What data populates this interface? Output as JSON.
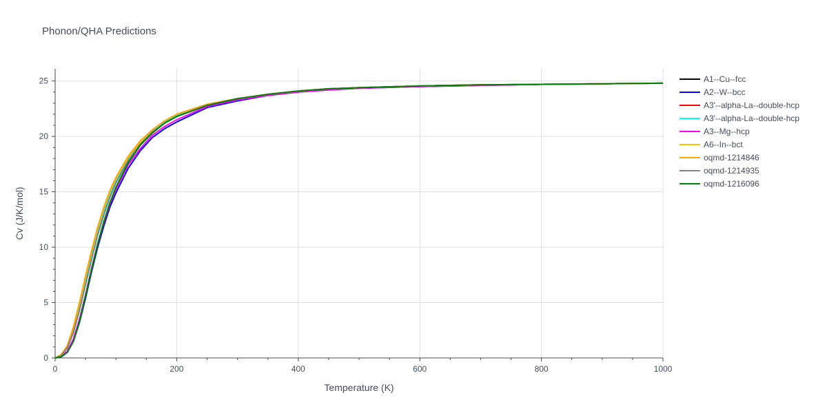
{
  "chart_data": {
    "type": "line",
    "title": "Phonon/QHA Predictions",
    "xlabel": "Temperature (K)",
    "ylabel": "Cv (J/K/mol)",
    "xlim": [
      0,
      1000
    ],
    "ylim": [
      0,
      26.1
    ],
    "xticks": [
      0,
      200,
      400,
      600,
      800,
      1000
    ],
    "yticks": [
      0,
      5,
      10,
      15,
      20,
      25
    ],
    "grid": true,
    "legend_position": "right",
    "series": [
      {
        "name": "A1--Cu--fcc",
        "color": "#000000",
        "x": [
          0,
          10,
          20,
          30,
          40,
          50,
          60,
          70,
          80,
          90,
          100,
          120,
          140,
          160,
          180,
          200,
          250,
          300,
          350,
          400,
          450,
          500,
          600,
          700,
          800,
          900,
          1000
        ],
        "y": [
          0,
          0.2,
          0.9,
          2.3,
          4.4,
          6.7,
          9.0,
          11.2,
          13.0,
          14.6,
          15.9,
          17.9,
          19.3,
          20.4,
          21.2,
          21.8,
          22.8,
          23.4,
          23.8,
          24.1,
          24.3,
          24.4,
          24.55,
          24.65,
          24.7,
          24.75,
          24.8
        ]
      },
      {
        "name": "A2--W--bcc",
        "color": "#0000ff",
        "x": [
          0,
          10,
          20,
          30,
          40,
          50,
          60,
          70,
          80,
          90,
          100,
          120,
          140,
          160,
          180,
          200,
          250,
          300,
          350,
          400,
          450,
          500,
          600,
          700,
          800,
          900,
          1000
        ],
        "y": [
          0,
          0.1,
          0.5,
          1.5,
          3.2,
          5.4,
          7.8,
          10.0,
          11.9,
          13.6,
          14.9,
          17.1,
          18.7,
          19.9,
          20.7,
          21.3,
          22.6,
          23.2,
          23.7,
          24.0,
          24.2,
          24.35,
          24.5,
          24.6,
          24.7,
          24.75,
          24.8
        ]
      },
      {
        "name": "A3'--alpha-La--double-hcp",
        "color": "#ff0000",
        "x": [
          0,
          10,
          20,
          30,
          40,
          50,
          60,
          70,
          80,
          90,
          100,
          120,
          140,
          160,
          180,
          200,
          250,
          300,
          350,
          400,
          450,
          500,
          600,
          700,
          800,
          900,
          1000
        ],
        "y": [
          0,
          0.2,
          0.9,
          2.4,
          4.6,
          6.9,
          9.2,
          11.4,
          13.2,
          14.8,
          16.0,
          18.0,
          19.4,
          20.5,
          21.3,
          21.9,
          22.9,
          23.4,
          23.8,
          24.1,
          24.3,
          24.4,
          24.55,
          24.65,
          24.7,
          24.75,
          24.8
        ]
      },
      {
        "name": "A3'--alpha-La--double-hcp",
        "color": "#00ffff",
        "x": [
          0,
          10,
          20,
          30,
          40,
          50,
          60,
          70,
          80,
          90,
          100,
          120,
          140,
          160,
          180,
          200,
          250,
          300,
          350,
          400,
          450,
          500,
          600,
          700,
          800,
          900,
          1000
        ],
        "y": [
          0,
          0.2,
          0.9,
          2.4,
          4.5,
          6.8,
          9.1,
          11.3,
          13.1,
          14.7,
          16.0,
          18.0,
          19.4,
          20.5,
          21.3,
          21.9,
          22.9,
          23.4,
          23.8,
          24.1,
          24.3,
          24.4,
          24.55,
          24.65,
          24.7,
          24.75,
          24.8
        ]
      },
      {
        "name": "A3--Mg--hcp",
        "color": "#ff00ff",
        "x": [
          0,
          10,
          20,
          30,
          40,
          50,
          60,
          70,
          80,
          90,
          100,
          120,
          140,
          160,
          180,
          200,
          250,
          300,
          350,
          400,
          450,
          500,
          600,
          700,
          800,
          900,
          1000
        ],
        "y": [
          0,
          0.1,
          0.6,
          1.7,
          3.5,
          5.7,
          8.1,
          10.3,
          12.2,
          13.9,
          15.2,
          17.4,
          18.9,
          20.1,
          20.9,
          21.5,
          22.7,
          23.3,
          23.7,
          24.0,
          24.2,
          24.35,
          24.5,
          24.6,
          24.7,
          24.75,
          24.8
        ]
      },
      {
        "name": "A6--In--bct",
        "color": "#ffbf00",
        "x": [
          0,
          10,
          20,
          30,
          40,
          50,
          60,
          70,
          80,
          90,
          100,
          120,
          140,
          160,
          180,
          200,
          250,
          300,
          350,
          400,
          450,
          500,
          600,
          700,
          800,
          900,
          1000
        ],
        "y": [
          0,
          0.3,
          1.1,
          2.7,
          4.9,
          7.3,
          9.6,
          11.7,
          13.5,
          15.0,
          16.2,
          18.1,
          19.5,
          20.6,
          21.4,
          22.0,
          22.9,
          23.4,
          23.8,
          24.1,
          24.3,
          24.4,
          24.55,
          24.65,
          24.7,
          24.75,
          24.8
        ]
      },
      {
        "name": "oqmd-1214846",
        "color": "#ffa500",
        "x": [
          0,
          10,
          20,
          30,
          40,
          50,
          60,
          70,
          80,
          90,
          100,
          120,
          140,
          160,
          180,
          200,
          250,
          300,
          350,
          400,
          450,
          500,
          600,
          700,
          800,
          900,
          1000
        ],
        "y": [
          0,
          0.3,
          1.1,
          2.8,
          5.0,
          7.4,
          9.7,
          11.8,
          13.6,
          15.1,
          16.3,
          18.2,
          19.6,
          20.6,
          21.4,
          22.0,
          22.9,
          23.4,
          23.8,
          24.1,
          24.3,
          24.4,
          24.55,
          24.65,
          24.7,
          24.75,
          24.8
        ]
      },
      {
        "name": "oqmd-1214935",
        "color": "#808080",
        "x": [
          0,
          10,
          20,
          30,
          40,
          50,
          60,
          70,
          80,
          90,
          100,
          120,
          140,
          160,
          180,
          200,
          250,
          300,
          350,
          400,
          450,
          500,
          600,
          700,
          800,
          900,
          1000
        ],
        "y": [
          0,
          0.2,
          0.9,
          2.3,
          4.3,
          6.6,
          8.9,
          11.1,
          12.9,
          14.5,
          15.8,
          17.8,
          19.3,
          20.4,
          21.2,
          21.8,
          22.8,
          23.4,
          23.8,
          24.1,
          24.3,
          24.4,
          24.55,
          24.65,
          24.7,
          24.75,
          24.8
        ]
      },
      {
        "name": "oqmd-1216096",
        "color": "#008000",
        "x": [
          0,
          10,
          20,
          30,
          40,
          50,
          60,
          70,
          80,
          90,
          100,
          120,
          140,
          160,
          180,
          200,
          250,
          300,
          350,
          400,
          450,
          500,
          600,
          700,
          800,
          900,
          1000
        ],
        "y": [
          0,
          0.1,
          0.5,
          1.5,
          3.3,
          5.6,
          8.0,
          10.3,
          12.3,
          14.0,
          15.4,
          17.6,
          19.2,
          20.3,
          21.2,
          21.8,
          22.8,
          23.4,
          23.8,
          24.1,
          24.3,
          24.4,
          24.55,
          24.65,
          24.7,
          24.75,
          24.8
        ]
      }
    ]
  }
}
